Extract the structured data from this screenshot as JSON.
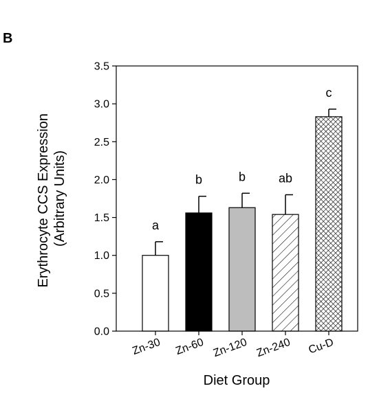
{
  "panel_label": "B",
  "chart_data": {
    "type": "bar",
    "xlabel": "Diet Group",
    "ylabel_lines": [
      "Erythrocyte CCS Expression",
      "(Arbitrary Units)"
    ],
    "ylim": [
      0,
      3.5
    ],
    "yticks": [
      "0.0",
      "0.5",
      "1.0",
      "1.5",
      "2.0",
      "2.5",
      "3.0",
      "3.5"
    ],
    "grid": false,
    "legend": "none",
    "categories": [
      "Zn-30",
      "Zn-60",
      "Zn-120",
      "Zn-240",
      "Cu-D"
    ],
    "values": [
      1.0,
      1.56,
      1.63,
      1.54,
      2.83
    ],
    "errors": [
      0.18,
      0.22,
      0.19,
      0.26,
      0.1
    ],
    "significance_labels": [
      "a",
      "b",
      "b",
      "ab",
      "c"
    ],
    "fills": [
      "white",
      "black",
      "gray",
      "diagonal-hatch",
      "crosshatch"
    ]
  }
}
